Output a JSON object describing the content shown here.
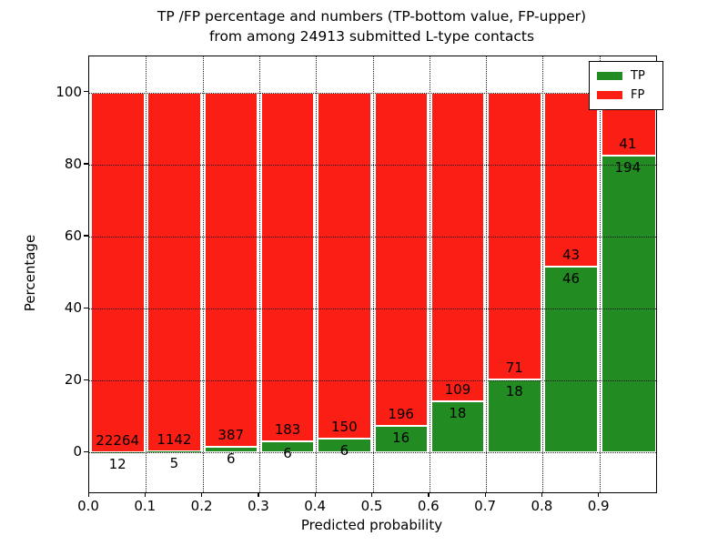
{
  "figure": {
    "title_line1": "TP /FP percentage and numbers (TP-bottom value, FP-upper)",
    "title_line2": "from among 24913 submitted L-type contacts"
  },
  "chart_data": {
    "type": "bar",
    "stacked": true,
    "normalized_to_percent": true,
    "title": "TP /FP percentage and numbers (TP-bottom value, FP-upper) from among 24913 submitted L-type contacts",
    "xlabel": "Predicted probability",
    "ylabel": "Percentage",
    "total_contacts": 24913,
    "xlim": [
      0.0,
      1.0
    ],
    "ylim": [
      -11,
      110
    ],
    "bin_width": 0.1,
    "grid": "dotted",
    "xticks": [
      "0.0",
      "0.1",
      "0.2",
      "0.3",
      "0.4",
      "0.5",
      "0.6",
      "0.7",
      "0.8",
      "0.9"
    ],
    "yticks": [
      "0",
      "20",
      "40",
      "60",
      "80",
      "100"
    ],
    "ytick_values": [
      0,
      20,
      40,
      60,
      80,
      100
    ],
    "series": [
      {
        "name": "TP",
        "color": "#228b22",
        "stack_position": "bottom"
      },
      {
        "name": "FP",
        "color": "#fa1e14",
        "stack_position": "top"
      }
    ],
    "legend": {
      "position": "upper right",
      "entries": [
        "TP",
        "FP"
      ]
    },
    "bins": [
      {
        "range_start": 0.0,
        "tp": 12,
        "fp": 22264
      },
      {
        "range_start": 0.1,
        "tp": 5,
        "fp": 1142
      },
      {
        "range_start": 0.2,
        "tp": 6,
        "fp": 387
      },
      {
        "range_start": 0.3,
        "tp": 6,
        "fp": 183
      },
      {
        "range_start": 0.4,
        "tp": 6,
        "fp": 150
      },
      {
        "range_start": 0.5,
        "tp": 16,
        "fp": 196
      },
      {
        "range_start": 0.6,
        "tp": 18,
        "fp": 109
      },
      {
        "range_start": 0.7,
        "tp": 18,
        "fp": 71
      },
      {
        "range_start": 0.8,
        "tp": 46,
        "fp": 43
      },
      {
        "range_start": 0.9,
        "tp": 194,
        "fp": 41
      }
    ]
  }
}
